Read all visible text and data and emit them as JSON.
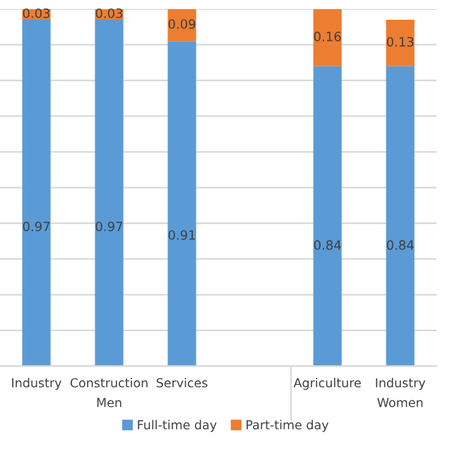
{
  "chart_data": {
    "type": "bar",
    "stacked": true,
    "categories": [
      "Industry",
      "Construction",
      "Services",
      null,
      "Agriculture",
      "Industry"
    ],
    "series": [
      {
        "name": "Full-time day",
        "color": "#5b9bd5",
        "values": [
          0.97,
          0.97,
          0.91,
          null,
          0.84,
          0.84
        ],
        "value_labels": [
          "0.97",
          "0.97",
          "0.91",
          null,
          "0.84",
          "0.84"
        ]
      },
      {
        "name": "Part-time day",
        "color": "#ed7d31",
        "values": [
          0.03,
          0.03,
          0.09,
          null,
          0.16,
          0.13
        ],
        "value_labels": [
          "0.03",
          "0.03",
          "0.09",
          null,
          "0.16",
          "0.13"
        ]
      }
    ],
    "ylim": [
      0,
      1
    ],
    "yticks": [
      {
        "value": 0,
        "label": null
      },
      {
        "value": 0.1,
        "label": null
      },
      {
        "value": 0.2,
        "label": null
      },
      {
        "value": 0.3,
        "label": null
      },
      {
        "value": 0.4,
        "label": null
      },
      {
        "value": 0.5,
        "label": null
      },
      {
        "value": 0.6,
        "label": null
      },
      {
        "value": 0.7,
        "label": null
      },
      {
        "value": 0.8,
        "label": null
      },
      {
        "value": 0.9,
        "label": null
      },
      {
        "value": 1,
        "label": null
      }
    ],
    "grid": "y",
    "legend": "bottom",
    "tick_labels": "x",
    "annotations": [
      "Men",
      "Women"
    ]
  }
}
